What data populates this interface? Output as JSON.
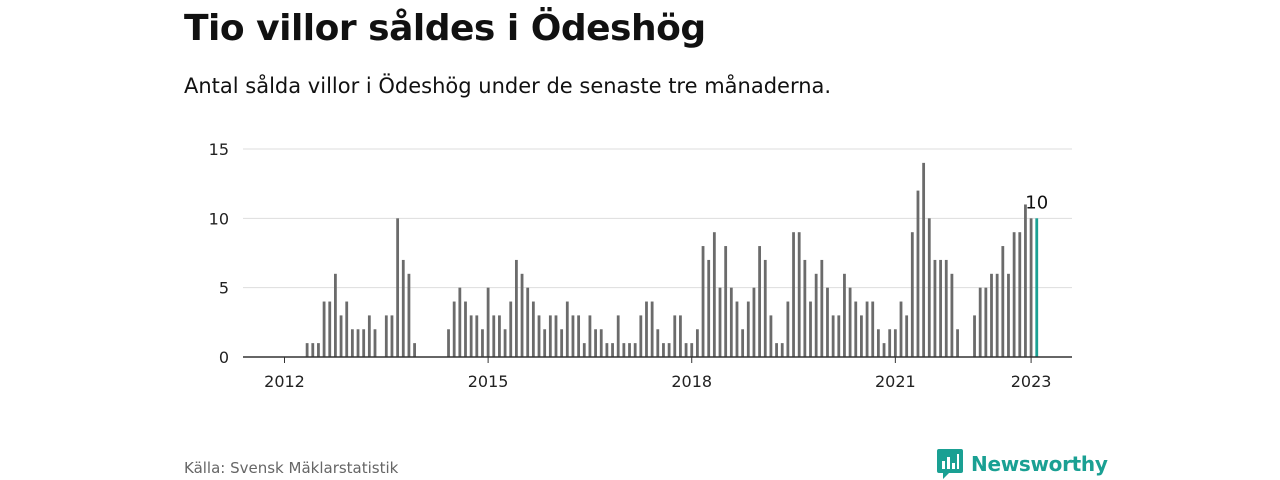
{
  "title": "Tio villor såldes i Ödeshög",
  "subtitle": "Antal sålda villor i Ödeshög under de senaste tre månaderna.",
  "source": "Källa: Svensk Mäklarstatistik",
  "brand": "Newsworthy",
  "colors": {
    "bar": "#6b6b6b",
    "highlight": "#1aa093",
    "grid": "#dddddd",
    "axis": "#333333",
    "brand": "#1aa093"
  },
  "chart_data": {
    "type": "bar",
    "ylim": [
      0,
      15
    ],
    "yticks": [
      0,
      5,
      10,
      15
    ],
    "xticks": [
      {
        "label": "2012",
        "month_index": 0
      },
      {
        "label": "2015",
        "month_index": 36
      },
      {
        "label": "2018",
        "month_index": 72
      },
      {
        "label": "2021",
        "month_index": 108
      },
      {
        "label": "2023",
        "month_index": 132
      }
    ],
    "x_start": "2012-01",
    "x_end": "2023-01",
    "grid": true,
    "values": [
      0,
      0,
      0,
      0,
      1,
      1,
      1,
      4,
      4,
      6,
      3,
      4,
      2,
      2,
      2,
      3,
      2,
      0,
      3,
      3,
      10,
      7,
      6,
      1,
      0,
      0,
      0,
      0,
      0,
      2,
      4,
      5,
      4,
      3,
      3,
      2,
      5,
      3,
      3,
      2,
      4,
      7,
      6,
      5,
      4,
      3,
      2,
      3,
      3,
      2,
      4,
      3,
      3,
      1,
      3,
      2,
      2,
      1,
      1,
      3,
      1,
      1,
      1,
      3,
      4,
      4,
      2,
      1,
      1,
      3,
      3,
      1,
      1,
      2,
      8,
      7,
      9,
      5,
      8,
      5,
      4,
      2,
      4,
      5,
      8,
      7,
      3,
      1,
      1,
      4,
      9,
      9,
      7,
      4,
      6,
      7,
      5,
      3,
      3,
      6,
      5,
      4,
      3,
      4,
      4,
      2,
      1,
      2,
      2,
      4,
      3,
      9,
      12,
      14,
      10,
      7,
      7,
      7,
      6,
      2,
      0,
      0,
      3,
      5,
      5,
      6,
      6,
      8,
      6,
      9,
      9,
      11,
      10,
      10
    ],
    "highlight_label": "10"
  }
}
